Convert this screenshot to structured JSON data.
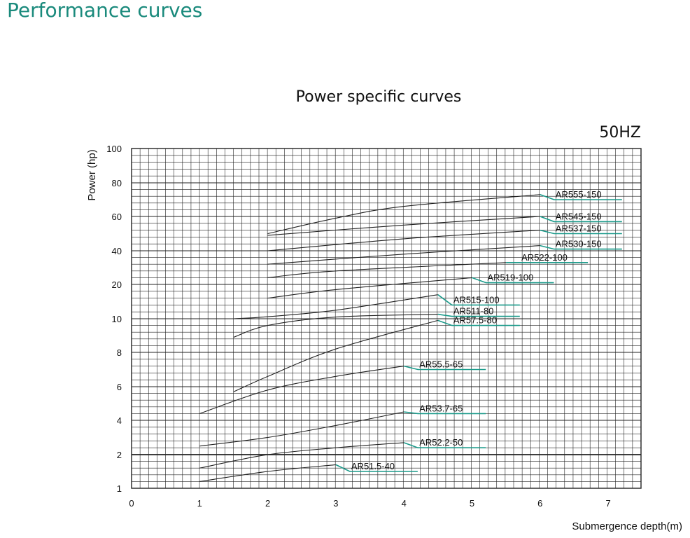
{
  "page": {
    "title": "Performance curves"
  },
  "chart_data": {
    "type": "line",
    "title": "Power specific curves",
    "frequency_label": "50HZ",
    "xlabel": "Submergence depth(m)",
    "ylabel": "Power (hp)",
    "xlim": [
      0,
      7.5
    ],
    "x_ticks": [
      "0",
      "1",
      "2",
      "3",
      "4",
      "5",
      "6",
      "7"
    ],
    "y_ticks": [
      "1",
      "2",
      "4",
      "6",
      "8",
      "10",
      "20",
      "40",
      "60",
      "80",
      "100"
    ],
    "grid": true,
    "colors": {
      "curve": "#222222",
      "marker": "#1a9a8a",
      "grid": "#222222"
    },
    "series": [
      {
        "name": "AR51.5-40",
        "x": [
          1,
          2,
          3
        ],
        "y": [
          1.2,
          1.5,
          1.7
        ],
        "end_power": 1.5
      },
      {
        "name": "AR52.2-50",
        "x": [
          1,
          2,
          3,
          4
        ],
        "y": [
          1.6,
          2.0,
          2.4,
          2.7
        ],
        "end_power": 2.4
      },
      {
        "name": "AR53.7-65",
        "x": [
          1,
          2,
          3,
          4
        ],
        "y": [
          2.5,
          3.0,
          3.7,
          4.5
        ],
        "end_power": 4.4
      },
      {
        "name": "AR55.5-65",
        "x": [
          1,
          2,
          3,
          4
        ],
        "y": [
          4.4,
          5.8,
          6.6,
          7.2
        ],
        "end_power": 7.0
      },
      {
        "name": "AR57.5-80",
        "x": [
          1.5,
          2,
          3,
          4.5
        ],
        "y": [
          5.7,
          6.6,
          8.2,
          9.9
        ],
        "end_power": 9.6
      },
      {
        "name": "AR511-80",
        "x": [
          1.5,
          2,
          3,
          4.5
        ],
        "y": [
          8.9,
          9.6,
          10.5,
          11.3
        ],
        "end_power": 10.7
      },
      {
        "name": "AR515-100",
        "x": [
          1.5,
          2,
          3,
          4.5
        ],
        "y": [
          10.0,
          10.6,
          12.5,
          17.0
        ],
        "end_power": 14.0
      },
      {
        "name": "AR519-100",
        "x": [
          2,
          3,
          5
        ],
        "y": [
          16.0,
          18.5,
          24.0
        ],
        "end_power": 21.0
      },
      {
        "name": "AR522-100",
        "x": [
          2,
          3,
          5.5
        ],
        "y": [
          24.0,
          28.0,
          33.0
        ],
        "end_power": 33.0
      },
      {
        "name": "AR530-150",
        "x": [
          2,
          4,
          6
        ],
        "y": [
          32.0,
          38.0,
          43.0
        ],
        "end_power": 41.0
      },
      {
        "name": "AR537-150",
        "x": [
          2,
          4,
          6
        ],
        "y": [
          40.0,
          47.0,
          52.0
        ],
        "end_power": 50.0
      },
      {
        "name": "AR545-150",
        "x": [
          2,
          4,
          6
        ],
        "y": [
          49.0,
          55.0,
          60.0
        ],
        "end_power": 57.0
      },
      {
        "name": "AR555-150",
        "x": [
          2,
          3,
          4,
          6
        ],
        "y": [
          50.0,
          59.0,
          66.0,
          73.0
        ],
        "end_power": 70.0
      }
    ]
  }
}
